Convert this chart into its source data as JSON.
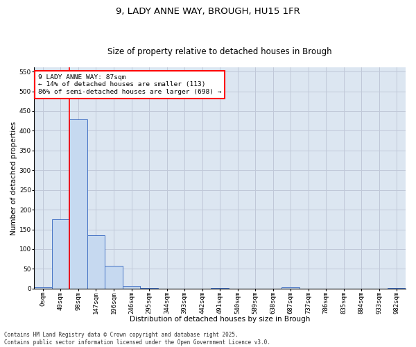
{
  "title1": "9, LADY ANNE WAY, BROUGH, HU15 1FR",
  "title2": "Size of property relative to detached houses in Brough",
  "xlabel": "Distribution of detached houses by size in Brough",
  "ylabel": "Number of detached properties",
  "bar_labels": [
    "0sqm",
    "49sqm",
    "98sqm",
    "147sqm",
    "196sqm",
    "246sqm",
    "295sqm",
    "344sqm",
    "393sqm",
    "442sqm",
    "491sqm",
    "540sqm",
    "589sqm",
    "638sqm",
    "687sqm",
    "737sqm",
    "786sqm",
    "835sqm",
    "884sqm",
    "933sqm",
    "982sqm"
  ],
  "bar_values": [
    4,
    175,
    428,
    135,
    58,
    7,
    1,
    0,
    0,
    0,
    1,
    0,
    0,
    0,
    3,
    0,
    0,
    0,
    0,
    0,
    2
  ],
  "bar_color": "#c6d9f0",
  "bar_edge_color": "#4472c4",
  "grid_color": "#c0c8d8",
  "background_color": "#dce6f1",
  "ylim": [
    0,
    560
  ],
  "yticks": [
    0,
    50,
    100,
    150,
    200,
    250,
    300,
    350,
    400,
    450,
    500,
    550
  ],
  "annotation_line1": "9 LADY ANNE WAY: 87sqm",
  "annotation_line2": "← 14% of detached houses are smaller (113)",
  "annotation_line3": "86% of semi-detached houses are larger (698) →",
  "footer": "Contains HM Land Registry data © Crown copyright and database right 2025.\nContains public sector information licensed under the Open Government Licence v3.0.",
  "title_fontsize": 9.5,
  "subtitle_fontsize": 8.5,
  "axis_label_fontsize": 7.5,
  "tick_fontsize": 6.5,
  "annotation_fontsize": 6.8,
  "footer_fontsize": 5.5
}
